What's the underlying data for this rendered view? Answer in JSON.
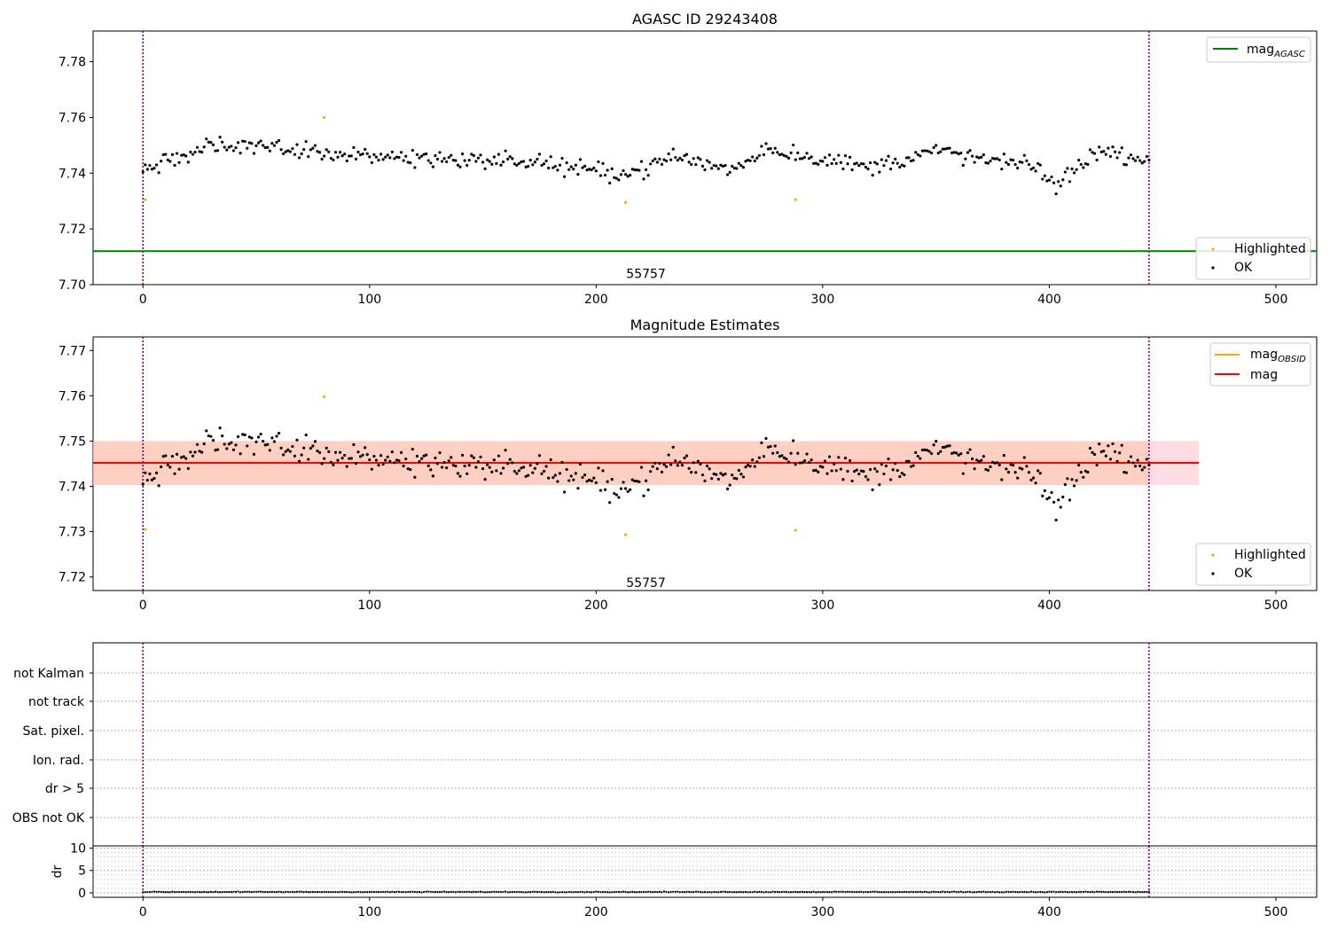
{
  "chart_data": [
    {
      "type": "scatter",
      "title": "AGASC ID 29243408",
      "xlim": [
        -22,
        518
      ],
      "ylim": [
        7.7,
        7.791
      ],
      "x_ticks": [
        0,
        100,
        200,
        300,
        400,
        500
      ],
      "y_ticks": [
        7.7,
        7.72,
        7.74,
        7.76,
        7.78
      ],
      "vlines": [
        0,
        444
      ],
      "hlines": [
        {
          "name": "mag_AGASC",
          "value": 7.712,
          "color": "#008000"
        }
      ],
      "text_annotations": [
        {
          "text": "55757",
          "x": 222,
          "y": 7.704
        }
      ],
      "legend_upper": {
        "position": "top-right",
        "entries": [
          {
            "label": "mag",
            "sub": "AGASC",
            "color": "#008000",
            "marker": "line"
          }
        ]
      },
      "legend_lower": {
        "position": "bottom-right",
        "entries": [
          {
            "label": "Highlighted",
            "color": "#ffa500",
            "marker": "dot"
          },
          {
            "label": "OK",
            "color": "#000000",
            "marker": "dot"
          }
        ]
      },
      "series": [
        {
          "name": "Highlighted",
          "color": "#ffa500",
          "x": [
            1,
            80,
            213,
            288
          ],
          "y": [
            7.7305,
            7.76,
            7.7295,
            7.7305
          ]
        },
        {
          "name": "OK",
          "color": "#000000",
          "x": [
            0,
            444
          ],
          "y": [
            7.7405,
            7.7455
          ],
          "generated_from_model": true
        }
      ],
      "ok_trend": [
        [
          0,
          7.742
        ],
        [
          10,
          7.744
        ],
        [
          30,
          7.75
        ],
        [
          60,
          7.749
        ],
        [
          80,
          7.748
        ],
        [
          100,
          7.746
        ],
        [
          140,
          7.745
        ],
        [
          175,
          7.744
        ],
        [
          195,
          7.741
        ],
        [
          215,
          7.74
        ],
        [
          235,
          7.746
        ],
        [
          260,
          7.741
        ],
        [
          275,
          7.749
        ],
        [
          300,
          7.745
        ],
        [
          320,
          7.742
        ],
        [
          350,
          7.748
        ],
        [
          370,
          7.745
        ],
        [
          395,
          7.742
        ],
        [
          403,
          7.735
        ],
        [
          420,
          7.748
        ],
        [
          445,
          7.745
        ]
      ]
    },
    {
      "type": "scatter",
      "title": "Magnitude Estimates",
      "xlim": [
        -22,
        518
      ],
      "ylim": [
        7.717,
        7.773
      ],
      "x_ticks": [
        0,
        100,
        200,
        300,
        400,
        500
      ],
      "y_ticks": [
        7.72,
        7.73,
        7.74,
        7.75,
        7.76,
        7.77
      ],
      "vlines": [
        0,
        444
      ],
      "hlines": [
        {
          "name": "mag_OBSID",
          "value": 7.7452,
          "color": "#ffa500",
          "x_range": [
            -22,
            466
          ]
        },
        {
          "name": "mag",
          "value": 7.7452,
          "color": "#ff0000",
          "x_range": [
            -22,
            466
          ]
        }
      ],
      "bands": [
        {
          "y_range": [
            7.7403,
            7.75
          ],
          "x_range": [
            -22,
            466
          ],
          "color": "#ffc0c8"
        },
        {
          "y_range": [
            7.7403,
            7.75
          ],
          "x_range": [
            -22,
            444
          ],
          "color": "#ffc6a8"
        }
      ],
      "text_annotations": [
        {
          "text": "55757",
          "x": 222,
          "y": 7.7188
        }
      ],
      "legend_upper": {
        "position": "top-right",
        "entries": [
          {
            "label": "mag",
            "sub": "OBSID",
            "color": "#ffa500",
            "marker": "line"
          },
          {
            "label": "mag",
            "sub": "",
            "color": "#ff0000",
            "marker": "line"
          }
        ]
      },
      "legend_lower": {
        "position": "bottom-right",
        "entries": [
          {
            "label": "Highlighted",
            "color": "#ffa500",
            "marker": "dot"
          },
          {
            "label": "OK",
            "color": "#000000",
            "marker": "dot"
          }
        ]
      },
      "series": [
        {
          "name": "Highlighted",
          "color": "#ffa500",
          "x": [
            1,
            80,
            213,
            288
          ],
          "y": [
            7.7305,
            7.7598,
            7.7293,
            7.7303
          ]
        },
        {
          "name": "OK",
          "color": "#000000",
          "x": [
            0,
            444
          ],
          "y": [
            7.7405,
            7.7455
          ],
          "generated_from_model": true
        }
      ]
    },
    {
      "type": "scatter",
      "title": "",
      "xlim": [
        -22,
        518
      ],
      "x_ticks": [
        0,
        100,
        200,
        300,
        400,
        500
      ],
      "vlines": [
        0,
        444
      ],
      "flag_labels": [
        "not Kalman",
        "not track",
        "Sat. pixel.",
        "Ion. rad.",
        "dr > 5",
        "OBS not OK"
      ],
      "flag_counts": [
        0,
        0,
        0,
        0,
        0,
        0
      ]
    },
    {
      "type": "scatter",
      "title": "",
      "ylabel": "dr",
      "xlim": [
        -22,
        518
      ],
      "ylim": [
        -1,
        10.5
      ],
      "x_ticks": [
        0,
        100,
        200,
        300,
        400,
        500
      ],
      "y_ticks": [
        0,
        5,
        10
      ],
      "vlines": [
        0,
        444
      ],
      "series": [
        {
          "name": "dr",
          "color": "#000000",
          "x_range": [
            0,
            444
          ],
          "y_typical": 0.2
        }
      ]
    }
  ]
}
